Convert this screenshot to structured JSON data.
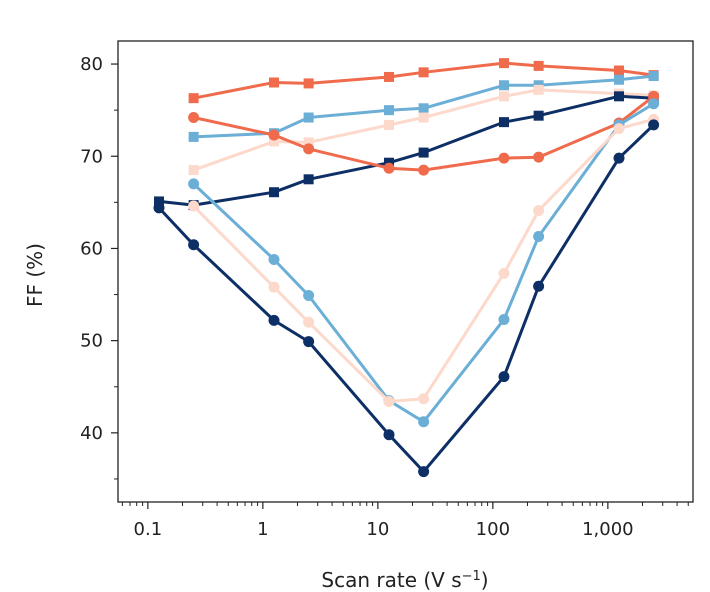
{
  "chart_data": {
    "type": "line",
    "title": "",
    "xlabel_main": "Scan rate (V s",
    "xlabel_sup": "−1",
    "xlabel_tail": ")",
    "ylabel": "FF (%)",
    "xscale": "log",
    "xlim": [
      0.055,
      5500
    ],
    "ylim": [
      32.5,
      82.5
    ],
    "x_ticks": [
      {
        "value": 0.1,
        "label": "0.1"
      },
      {
        "value": 1,
        "label": "1"
      },
      {
        "value": 10,
        "label": "10"
      },
      {
        "value": 100,
        "label": "100"
      },
      {
        "value": 1000,
        "label": "1,000"
      }
    ],
    "y_ticks": [
      {
        "value": 40,
        "label": "40"
      },
      {
        "value": 50,
        "label": "50"
      },
      {
        "value": 60,
        "label": "60"
      },
      {
        "value": 70,
        "label": "70"
      },
      {
        "value": 80,
        "label": "80"
      }
    ],
    "y_minor_ticks": [
      35,
      45,
      55,
      65,
      75
    ],
    "grid": false,
    "legend": "none",
    "series": [
      {
        "color": "#f06a4c",
        "marker": "square",
        "x": [
          0.25,
          1.25,
          2.5,
          12.5,
          25,
          125,
          250,
          1250,
          2500
        ],
        "y": [
          76.3,
          78.0,
          77.9,
          78.6,
          79.1,
          80.1,
          79.8,
          79.3,
          78.8
        ]
      },
      {
        "color": "#6baed6",
        "marker": "square",
        "x": [
          0.25,
          1.25,
          2.5,
          12.5,
          25,
          125,
          250,
          1250,
          2500
        ],
        "y": [
          72.1,
          72.5,
          74.2,
          75.0,
          75.2,
          77.7,
          77.7,
          78.3,
          78.7
        ]
      },
      {
        "color": "#fcd9cb",
        "marker": "square",
        "x": [
          0.25,
          1.25,
          2.5,
          12.5,
          25,
          125,
          250,
          1250,
          2500
        ],
        "y": [
          68.5,
          71.6,
          71.5,
          73.4,
          74.2,
          76.5,
          77.2,
          76.8,
          76.6
        ]
      },
      {
        "color": "#0d2f66",
        "marker": "square",
        "x": [
          0.125,
          0.25,
          1.25,
          2.5,
          12.5,
          25,
          125,
          250,
          1250,
          2500
        ],
        "y": [
          65.1,
          64.7,
          66.1,
          67.5,
          69.3,
          70.4,
          73.7,
          74.4,
          76.5,
          76.3
        ]
      },
      {
        "color": "#f06a4c",
        "marker": "circle",
        "x": [
          0.25,
          1.25,
          2.5,
          12.5,
          25,
          125,
          250,
          1250,
          2500
        ],
        "y": [
          74.2,
          72.3,
          70.8,
          68.7,
          68.5,
          69.8,
          69.9,
          73.6,
          76.5
        ]
      },
      {
        "color": "#6baed6",
        "marker": "circle",
        "x": [
          0.25,
          1.25,
          2.5,
          12.5,
          25,
          125,
          250,
          1250,
          2500
        ],
        "y": [
          67.0,
          58.8,
          54.9,
          43.5,
          41.2,
          52.3,
          61.3,
          73.4,
          75.7
        ]
      },
      {
        "color": "#fcd9cb",
        "marker": "circle",
        "x": [
          0.25,
          1.25,
          2.5,
          12.5,
          25,
          125,
          250,
          1250,
          2500
        ],
        "y": [
          64.6,
          55.8,
          52.0,
          43.4,
          43.7,
          57.3,
          64.1,
          73.0,
          74.0
        ]
      },
      {
        "color": "#0d2f66",
        "marker": "circle",
        "x": [
          0.125,
          0.25,
          1.25,
          2.5,
          12.5,
          25,
          125,
          250,
          1250,
          2500
        ],
        "y": [
          64.4,
          60.4,
          52.2,
          49.9,
          39.8,
          35.8,
          46.1,
          55.9,
          69.8,
          73.4
        ]
      }
    ]
  }
}
